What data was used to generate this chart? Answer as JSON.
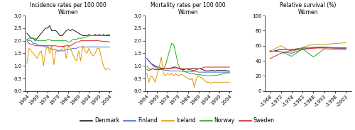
{
  "incidence": {
    "title": "Incidence rates per 100 000\nWomen",
    "ylim": [
      0.0,
      3.0
    ],
    "yticks": [
      0.0,
      0.5,
      1.0,
      1.5,
      2.0,
      2.5,
      3.0
    ],
    "xticks": [
      1964,
      1969,
      1974,
      1979,
      1984,
      1989,
      1994,
      1999,
      2004
    ],
    "xlim": [
      1963,
      2005
    ],
    "denmark": [
      2.3,
      2.2,
      2.1,
      2.1,
      2.0,
      2.1,
      2.2,
      2.3,
      2.4,
      2.5,
      2.5,
      2.6,
      2.4,
      2.4,
      2.4,
      2.3,
      2.2,
      2.2,
      2.3,
      2.4,
      2.45,
      2.4,
      2.45,
      2.4,
      2.35,
      2.3,
      2.25,
      2.2,
      2.2,
      2.2,
      2.25,
      2.2,
      2.2,
      2.25,
      2.2,
      2.25,
      2.2,
      2.25,
      2.2,
      2.2,
      2.2
    ],
    "finland": [
      2.05,
      2.0,
      2.0,
      1.9,
      1.9,
      1.85,
      1.8,
      1.8,
      1.8,
      1.75,
      1.75,
      1.7,
      1.65,
      1.65,
      1.65,
      1.6,
      1.6,
      1.6,
      1.6,
      1.65,
      1.65,
      1.65,
      1.7,
      1.7,
      1.7,
      1.75,
      1.75,
      1.75,
      1.75,
      1.75,
      1.75,
      1.75,
      1.75,
      1.75,
      1.75,
      1.75,
      1.75,
      1.75,
      1.75,
      1.75,
      1.75
    ],
    "iceland": [
      1.1,
      1.7,
      1.6,
      1.5,
      1.4,
      1.3,
      1.5,
      1.6,
      1.0,
      1.6,
      1.8,
      1.5,
      1.8,
      1.05,
      1.6,
      1.55,
      1.65,
      1.65,
      1.8,
      1.3,
      1.8,
      1.7,
      1.5,
      1.3,
      1.2,
      1.6,
      1.2,
      1.8,
      1.6,
      1.5,
      1.7,
      1.5,
      1.4,
      1.5,
      1.7,
      1.7,
      1.3,
      1.0,
      0.85,
      0.9,
      0.85
    ],
    "norway": [
      2.05,
      2.1,
      2.1,
      2.1,
      2.1,
      2.0,
      2.0,
      2.0,
      2.0,
      2.0,
      2.05,
      2.05,
      2.0,
      2.0,
      2.0,
      2.0,
      2.0,
      2.0,
      2.0,
      2.0,
      1.95,
      1.95,
      2.05,
      2.05,
      2.05,
      2.1,
      2.1,
      2.1,
      2.15,
      2.15,
      2.2,
      2.2,
      2.2,
      2.2,
      2.2,
      2.2,
      2.2,
      2.2,
      2.2,
      2.25,
      2.25
    ],
    "sweden": [
      2.0,
      1.9,
      1.85,
      1.85,
      1.8,
      1.8,
      1.8,
      1.8,
      1.8,
      1.8,
      1.8,
      1.8,
      1.8,
      1.8,
      1.8,
      1.78,
      1.78,
      1.78,
      1.78,
      1.8,
      1.8,
      1.8,
      1.85,
      1.9,
      1.95,
      1.95,
      2.0,
      2.0,
      2.0,
      2.0,
      2.0,
      2.0,
      2.0,
      2.0,
      2.0,
      2.0,
      1.98,
      1.98,
      1.97,
      1.97,
      1.95
    ]
  },
  "mortality": {
    "title": "Mortality rates per 100 000\nWomen",
    "ylim": [
      0.0,
      3.0
    ],
    "yticks": [
      0.0,
      0.5,
      1.0,
      1.5,
      2.0,
      2.5,
      3.0
    ],
    "xticks": [
      1964,
      1969,
      1974,
      1979,
      1984,
      1989,
      1994,
      1999,
      2004
    ],
    "xlim": [
      1963,
      2005
    ],
    "denmark": [
      1.3,
      1.2,
      1.1,
      1.05,
      1.0,
      0.95,
      0.95,
      0.9,
      0.9,
      0.88,
      0.9,
      0.9,
      0.92,
      0.95,
      0.95,
      0.9,
      0.88,
      0.85,
      0.85,
      0.88,
      0.88,
      0.88,
      0.9,
      0.9,
      0.9,
      0.88,
      0.88,
      0.85,
      0.82,
      0.8,
      0.8,
      0.82,
      0.82,
      0.8,
      0.82,
      0.82,
      0.82,
      0.82,
      0.82,
      0.8,
      0.8
    ],
    "finland": [
      1.3,
      1.2,
      1.1,
      1.0,
      0.95,
      0.9,
      0.88,
      0.85,
      0.85,
      0.82,
      0.82,
      0.8,
      0.8,
      0.8,
      0.8,
      0.8,
      0.8,
      0.78,
      0.78,
      0.78,
      0.78,
      0.78,
      0.78,
      0.78,
      0.78,
      0.75,
      0.75,
      0.75,
      0.75,
      0.75,
      0.75,
      0.75,
      0.75,
      0.75,
      0.75,
      0.75,
      0.75,
      0.75,
      0.75,
      0.75,
      0.75
    ],
    "iceland": [
      0.7,
      0.35,
      0.6,
      0.55,
      0.35,
      0.65,
      0.95,
      1.35,
      0.7,
      0.6,
      0.7,
      0.65,
      0.7,
      0.6,
      0.7,
      0.6,
      0.65,
      0.65,
      0.6,
      0.55,
      0.5,
      0.45,
      0.5,
      0.15,
      0.5,
      0.6,
      0.55,
      0.5,
      0.4,
      0.35,
      0.35,
      0.3,
      0.35,
      0.35,
      0.35,
      0.35,
      0.35,
      0.35,
      0.35,
      0.35,
      0.35
    ],
    "norway": [
      1.0,
      0.9,
      0.85,
      0.88,
      0.85,
      0.85,
      0.85,
      0.88,
      0.9,
      1.0,
      1.3,
      1.6,
      1.9,
      1.85,
      1.5,
      1.1,
      0.9,
      0.85,
      0.8,
      0.75,
      0.72,
      0.7,
      0.7,
      0.68,
      0.65,
      0.65,
      0.65,
      0.62,
      0.62,
      0.6,
      0.6,
      0.6,
      0.62,
      0.62,
      0.62,
      0.65,
      0.65,
      0.7,
      0.7,
      0.72,
      0.72
    ],
    "sweden": [
      0.85,
      0.82,
      0.85,
      0.9,
      0.85,
      0.85,
      0.85,
      0.88,
      0.9,
      0.88,
      0.9,
      0.9,
      0.9,
      0.92,
      0.92,
      0.92,
      0.9,
      0.9,
      0.88,
      0.88,
      0.85,
      0.85,
      0.82,
      0.82,
      0.85,
      0.88,
      0.9,
      0.92,
      0.95,
      0.95,
      0.95,
      0.95,
      0.95,
      0.95,
      0.95,
      0.95,
      0.95,
      0.95,
      0.95,
      0.95,
      0.95
    ]
  },
  "survival": {
    "title": "Relative survival (%)\nWomen",
    "ylim": [
      0,
      100
    ],
    "yticks": [
      0,
      20,
      40,
      60,
      80,
      100
    ],
    "xlabels": [
      "–1968",
      "–1973",
      "–1978",
      "–1983",
      "–1988",
      "–1993",
      "–1998",
      "–2003"
    ],
    "xlim": [
      -0.5,
      7.5
    ],
    "denmark": [
      52,
      55,
      55,
      57,
      57,
      58,
      57,
      57
    ],
    "finland": [
      53,
      52,
      50,
      55,
      58,
      58,
      57,
      56
    ],
    "iceland": [
      53,
      60,
      52,
      58,
      62,
      62,
      63,
      64
    ],
    "norway": [
      53,
      52,
      46,
      56,
      45,
      56,
      55,
      55
    ],
    "sweden": [
      43,
      50,
      54,
      55,
      57,
      57,
      57,
      57
    ]
  },
  "colors": {
    "denmark": "#1a1a1a",
    "finland": "#4466dd",
    "iceland": "#dd9900",
    "norway": "#22aa22",
    "sweden": "#dd2222"
  },
  "legend_labels": [
    "Denmark",
    "Finland",
    "Iceland",
    "Norway",
    "Sweden"
  ],
  "legend_colors": [
    "#1a1a1a",
    "#4466dd",
    "#dd9900",
    "#22aa22",
    "#dd2222"
  ]
}
